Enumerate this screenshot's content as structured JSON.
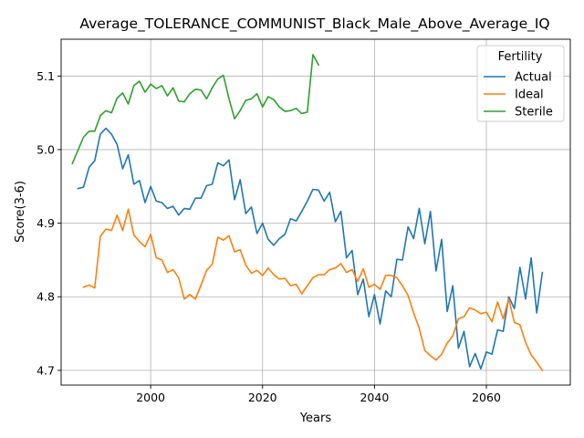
{
  "chart_data": {
    "type": "line",
    "title": "Average_TOLERANCE_COMMUNIST_Black_Male_Above_Average_IQ",
    "xlabel": "Years",
    "ylabel": "Score(3-6)",
    "xlim": [
      1984,
      2075
    ],
    "ylim": [
      4.68,
      5.15
    ],
    "xticks": [
      2000,
      2020,
      2040,
      2060
    ],
    "yticks": [
      4.7,
      4.8,
      4.9,
      5.0,
      5.1
    ],
    "ytick_labels": [
      "4.7",
      "4.8",
      "4.9",
      "5.0",
      "5.1"
    ],
    "grid": true,
    "legend": {
      "title": "Fertility",
      "placement": "top-right"
    },
    "series": [
      {
        "name": "Actual",
        "color": "#1f77b4",
        "x": [
          1987,
          1988,
          1989,
          1990,
          1991,
          1992,
          1993,
          1994,
          1995,
          1996,
          1997,
          1998,
          1999,
          2000,
          2001,
          2002,
          2003,
          2004,
          2005,
          2006,
          2007,
          2008,
          2009,
          2010,
          2011,
          2012,
          2013,
          2014,
          2015,
          2016,
          2017,
          2018,
          2019,
          2020,
          2021,
          2022,
          2023,
          2024,
          2025,
          2026,
          2027,
          2028,
          2029,
          2030,
          2031,
          2032,
          2033,
          2034,
          2035,
          2036,
          2037,
          2038,
          2039,
          2040,
          2041,
          2042,
          2043,
          2044,
          2045,
          2046,
          2047,
          2048,
          2049,
          2050,
          2051,
          2052,
          2053,
          2054,
          2055,
          2056,
          2057,
          2058,
          2059,
          2060,
          2061,
          2062,
          2063,
          2064,
          2065,
          2066,
          2067,
          2068,
          2069,
          2070
        ],
        "values": [
          4.947,
          4.949,
          4.976,
          4.985,
          5.021,
          5.029,
          5.021,
          5.007,
          4.974,
          4.993,
          4.953,
          4.958,
          4.928,
          4.95,
          4.93,
          4.928,
          4.92,
          4.923,
          4.911,
          4.92,
          4.919,
          4.934,
          4.934,
          4.951,
          4.953,
          4.982,
          4.978,
          4.986,
          4.932,
          4.959,
          4.913,
          4.922,
          4.886,
          4.9,
          4.878,
          4.87,
          4.879,
          4.885,
          4.906,
          4.903,
          4.916,
          4.93,
          4.946,
          4.945,
          4.93,
          4.942,
          4.902,
          4.916,
          4.853,
          4.863,
          4.803,
          4.824,
          4.773,
          4.803,
          4.763,
          4.808,
          4.8,
          4.851,
          4.85,
          4.895,
          4.879,
          4.92,
          4.872,
          4.916,
          4.835,
          4.878,
          4.78,
          4.815,
          4.73,
          4.753,
          4.705,
          4.723,
          4.702,
          4.725,
          4.722,
          4.755,
          4.753,
          4.8,
          4.784,
          4.84,
          4.797,
          4.853,
          4.778,
          4.833
        ]
      },
      {
        "name": "Ideal",
        "color": "#ff7f0e",
        "x": [
          1988,
          1989,
          1990,
          1991,
          1992,
          1993,
          1994,
          1995,
          1996,
          1997,
          1998,
          1999,
          2000,
          2001,
          2002,
          2003,
          2004,
          2005,
          2006,
          2007,
          2008,
          2009,
          2010,
          2011,
          2012,
          2013,
          2014,
          2015,
          2016,
          2017,
          2018,
          2019,
          2020,
          2021,
          2022,
          2023,
          2024,
          2025,
          2026,
          2027,
          2028,
          2029,
          2030,
          2031,
          2032,
          2033,
          2034,
          2035,
          2036,
          2037,
          2038,
          2039,
          2040,
          2041,
          2042,
          2043,
          2044,
          2045,
          2046,
          2047,
          2048,
          2049,
          2050,
          2051,
          2052,
          2053,
          2054,
          2055,
          2056,
          2057,
          2058,
          2059,
          2060,
          2061,
          2062,
          2063,
          2064,
          2065,
          2066,
          2067,
          2068,
          2069,
          2070
        ],
        "values": [
          4.813,
          4.816,
          4.812,
          4.882,
          4.892,
          4.89,
          4.911,
          4.89,
          4.919,
          4.884,
          4.875,
          4.868,
          4.885,
          4.853,
          4.85,
          4.833,
          4.837,
          4.826,
          4.797,
          4.803,
          4.797,
          4.816,
          4.836,
          4.844,
          4.881,
          4.877,
          4.883,
          4.861,
          4.864,
          4.843,
          4.832,
          4.836,
          4.829,
          4.839,
          4.83,
          4.824,
          4.825,
          4.815,
          4.817,
          4.804,
          4.815,
          4.826,
          4.83,
          4.83,
          4.837,
          4.839,
          4.845,
          4.833,
          4.837,
          4.821,
          4.838,
          4.813,
          4.817,
          4.81,
          4.829,
          4.829,
          4.826,
          4.815,
          4.802,
          4.778,
          4.757,
          4.727,
          4.72,
          4.714,
          4.722,
          4.737,
          4.747,
          4.77,
          4.773,
          4.785,
          4.782,
          4.777,
          4.779,
          4.766,
          4.793,
          4.77,
          4.797,
          4.765,
          4.762,
          4.738,
          4.721,
          4.711,
          4.7
        ]
      },
      {
        "name": "Sterile",
        "color": "#2ca02c",
        "x": [
          1986,
          1987,
          1988,
          1989,
          1990,
          1991,
          1992,
          1993,
          1994,
          1995,
          1996,
          1997,
          1998,
          1999,
          2000,
          2001,
          2002,
          2003,
          2004,
          2005,
          2006,
          2007,
          2008,
          2009,
          2010,
          2011,
          2012,
          2013,
          2014,
          2015,
          2016,
          2017,
          2018,
          2019,
          2020,
          2021,
          2022,
          2023,
          2024,
          2025,
          2026,
          2027,
          2028,
          2029,
          2030
        ],
        "values": [
          4.981,
          4.999,
          5.017,
          5.025,
          5.025,
          5.046,
          5.053,
          5.05,
          5.07,
          5.077,
          5.062,
          5.087,
          5.093,
          5.078,
          5.089,
          5.083,
          5.087,
          5.073,
          5.084,
          5.066,
          5.065,
          5.076,
          5.082,
          5.081,
          5.069,
          5.084,
          5.096,
          5.101,
          5.069,
          5.042,
          5.053,
          5.067,
          5.069,
          5.076,
          5.058,
          5.072,
          5.068,
          5.058,
          5.052,
          5.053,
          5.056,
          5.049,
          5.051,
          5.129,
          5.115
        ]
      }
    ]
  }
}
